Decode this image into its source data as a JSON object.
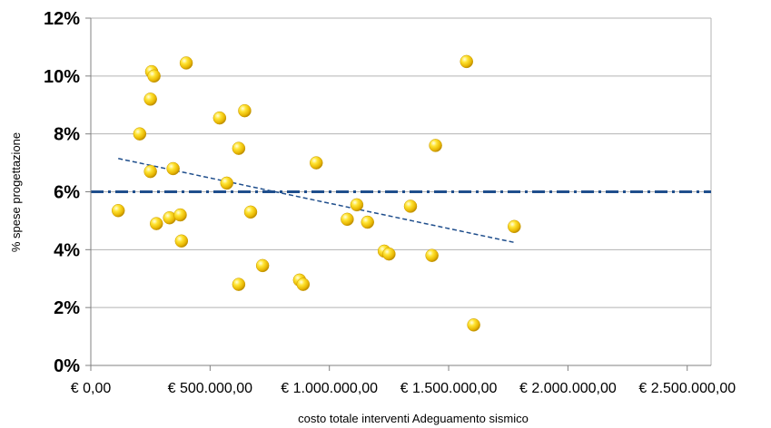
{
  "chart_data": {
    "type": "scatter",
    "title": "",
    "xlabel": "costo totale interventi Adeguamento sismico",
    "ylabel": "% spese progettazione",
    "xlim": [
      0,
      2600000
    ],
    "ylim": [
      0,
      12
    ],
    "x_ticks": [
      0,
      500000,
      1000000,
      1500000,
      2000000,
      2500000
    ],
    "x_tick_labels": [
      "€ 0,00",
      "€ 500.000,00",
      "€ 1.000.000,00",
      "€ 1.500.000,00",
      "€ 2.000.000,00",
      "€ 2.500.000,00"
    ],
    "y_ticks": [
      0,
      2,
      4,
      6,
      8,
      10,
      12
    ],
    "y_tick_labels": [
      "0%",
      "2%",
      "4%",
      "6%",
      "8%",
      "10%",
      "12%"
    ],
    "grid": "horizontal",
    "legend": "none",
    "points": [
      {
        "x": 115000,
        "y": 5.35
      },
      {
        "x": 205000,
        "y": 8.0
      },
      {
        "x": 250000,
        "y": 6.7
      },
      {
        "x": 250000,
        "y": 9.2
      },
      {
        "x": 255000,
        "y": 10.15
      },
      {
        "x": 265000,
        "y": 10.0
      },
      {
        "x": 275000,
        "y": 4.9
      },
      {
        "x": 330000,
        "y": 5.1
      },
      {
        "x": 345000,
        "y": 6.8
      },
      {
        "x": 375000,
        "y": 5.2
      },
      {
        "x": 380000,
        "y": 4.3
      },
      {
        "x": 400000,
        "y": 10.45
      },
      {
        "x": 540000,
        "y": 8.55
      },
      {
        "x": 570000,
        "y": 6.3
      },
      {
        "x": 620000,
        "y": 7.5
      },
      {
        "x": 620000,
        "y": 2.8
      },
      {
        "x": 645000,
        "y": 8.8
      },
      {
        "x": 670000,
        "y": 5.3
      },
      {
        "x": 720000,
        "y": 3.45
      },
      {
        "x": 875000,
        "y": 2.95
      },
      {
        "x": 890000,
        "y": 2.8
      },
      {
        "x": 945000,
        "y": 7.0
      },
      {
        "x": 1075000,
        "y": 5.05
      },
      {
        "x": 1115000,
        "y": 5.55
      },
      {
        "x": 1160000,
        "y": 4.95
      },
      {
        "x": 1230000,
        "y": 3.95
      },
      {
        "x": 1250000,
        "y": 3.85
      },
      {
        "x": 1340000,
        "y": 5.5
      },
      {
        "x": 1430000,
        "y": 3.8
      },
      {
        "x": 1445000,
        "y": 7.6
      },
      {
        "x": 1575000,
        "y": 10.5
      },
      {
        "x": 1605000,
        "y": 1.4
      },
      {
        "x": 1775000,
        "y": 4.8
      }
    ],
    "reference_line": {
      "y": 6,
      "style": "dash-dot",
      "color": "#1f4e8c"
    },
    "trendline": {
      "x": [
        115000,
        1775000
      ],
      "y": [
        7.15,
        4.25
      ],
      "style": "dashed",
      "color": "#1f4e8c"
    },
    "marker_color": "#f5c800",
    "grid_color": "#b3b3b3"
  }
}
